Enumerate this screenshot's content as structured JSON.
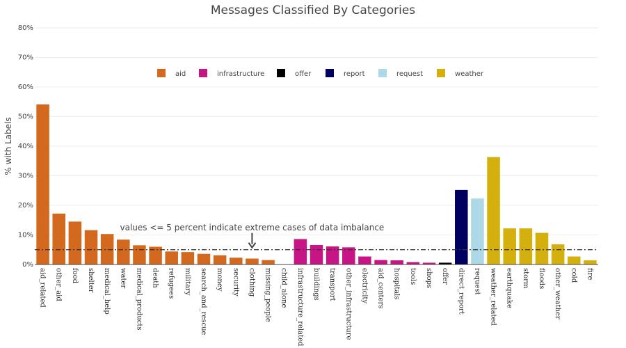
{
  "chart_data": {
    "type": "bar",
    "title": "Messages Classified By Categories",
    "ylabel": "% with Labels",
    "xlabel": "",
    "ylim": [
      0,
      80
    ],
    "yticks": [
      "0%",
      "10%",
      "20%",
      "30%",
      "40%",
      "50%",
      "60%",
      "70%",
      "80%"
    ],
    "grid": true,
    "legend_position": "top-center",
    "legend": [
      {
        "name": "aid",
        "color": "#d2691e"
      },
      {
        "name": "infrastructure",
        "color": "#c71585"
      },
      {
        "name": "offer",
        "color": "#000000"
      },
      {
        "name": "report",
        "color": "#000060"
      },
      {
        "name": "request",
        "color": "#add8e6"
      },
      {
        "name": "weather",
        "color": "#d4b00f"
      }
    ],
    "categories": [
      "aid_related",
      "other_aid",
      "food",
      "shelter",
      "medical_help",
      "water",
      "medical_products",
      "death",
      "refugees",
      "military",
      "search_and_rescue",
      "money",
      "security",
      "clothing",
      "missing_people",
      "child_alone",
      "infrastructure_related",
      "buildings",
      "transport",
      "other_infrastructure",
      "electricity",
      "aid_centers",
      "hospitals",
      "tools",
      "shops",
      "offer",
      "direct_report",
      "request",
      "weather_related",
      "earthquake",
      "storm",
      "floods",
      "other_weather",
      "cold",
      "fire"
    ],
    "groups": [
      "aid",
      "aid",
      "aid",
      "aid",
      "aid",
      "aid",
      "aid",
      "aid",
      "aid",
      "aid",
      "aid",
      "aid",
      "aid",
      "aid",
      "aid",
      "aid",
      "infrastructure",
      "infrastructure",
      "infrastructure",
      "infrastructure",
      "infrastructure",
      "infrastructure",
      "infrastructure",
      "infrastructure",
      "infrastructure",
      "offer",
      "report",
      "request",
      "weather",
      "weather",
      "weather",
      "weather",
      "weather",
      "weather",
      "weather"
    ],
    "values": [
      54.1,
      17.2,
      14.5,
      11.6,
      10.3,
      8.4,
      6.5,
      6.0,
      4.4,
      4.2,
      3.6,
      3.1,
      2.3,
      2.0,
      1.5,
      0.0,
      8.6,
      6.6,
      6.1,
      5.8,
      2.7,
      1.5,
      1.4,
      0.8,
      0.6,
      0.6,
      25.2,
      22.3,
      36.3,
      12.2,
      12.2,
      10.7,
      6.8,
      2.7,
      1.4
    ],
    "threshold": 5,
    "annotation": "values <= 5 percent indicate extreme cases of data imbalance",
    "annotation_arrow_category": "missing_people"
  }
}
